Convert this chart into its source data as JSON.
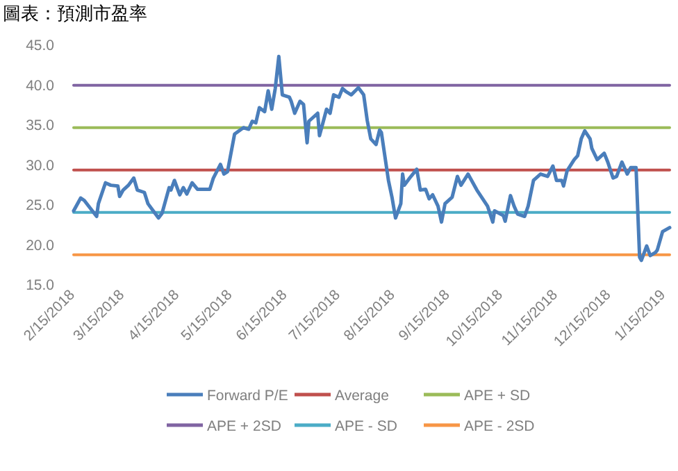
{
  "chart_data": {
    "type": "line",
    "title": "圖表：預測市盈率",
    "xlim": [
      "2018-02-14",
      "2019-01-17"
    ],
    "ylim": [
      15,
      45
    ],
    "yticks": [
      {
        "value": 15,
        "label": "15.0"
      },
      {
        "value": 20,
        "label": "20.0"
      },
      {
        "value": 25,
        "label": "25.0"
      },
      {
        "value": 30,
        "label": "30.0"
      },
      {
        "value": 35,
        "label": "35.0"
      },
      {
        "value": 40,
        "label": "40.0"
      },
      {
        "value": 45,
        "label": "45.0"
      }
    ],
    "xticks": [
      {
        "value": "2018-02-15",
        "label": "2/15/2018"
      },
      {
        "value": "2018-03-15",
        "label": "3/15/2018"
      },
      {
        "value": "2018-04-15",
        "label": "4/15/2018"
      },
      {
        "value": "2018-05-15",
        "label": "5/15/2018"
      },
      {
        "value": "2018-06-15",
        "label": "6/15/2018"
      },
      {
        "value": "2018-07-15",
        "label": "7/15/2018"
      },
      {
        "value": "2018-08-15",
        "label": "8/15/2018"
      },
      {
        "value": "2018-09-15",
        "label": "9/15/2018"
      },
      {
        "value": "2018-10-15",
        "label": "10/15/2018"
      },
      {
        "value": "2018-11-15",
        "label": "11/15/2018"
      },
      {
        "value": "2018-12-15",
        "label": "12/15/2018"
      },
      {
        "value": "2019-01-15",
        "label": "1/15/2019"
      }
    ],
    "legend": "bottom",
    "series": [
      {
        "name": "Forward P/E",
        "color": "#4a7ebb",
        "x": [
          "2018-02-14",
          "2018-02-18",
          "2018-02-20",
          "2018-02-27",
          "2018-02-28",
          "2018-03-04",
          "2018-03-07",
          "2018-03-11",
          "2018-03-12",
          "2018-03-14",
          "2018-03-17",
          "2018-03-20",
          "2018-03-22",
          "2018-03-26",
          "2018-03-28",
          "2018-03-31",
          "2018-04-03",
          "2018-04-05",
          "2018-04-09",
          "2018-04-10",
          "2018-04-12",
          "2018-04-15",
          "2018-04-17",
          "2018-04-19",
          "2018-04-22",
          "2018-04-25",
          "2018-05-02",
          "2018-05-04",
          "2018-05-08",
          "2018-05-10",
          "2018-05-12",
          "2018-05-16",
          "2018-05-21",
          "2018-05-24",
          "2018-05-26",
          "2018-05-28",
          "2018-05-30",
          "2018-06-02",
          "2018-06-04",
          "2018-06-06",
          "2018-06-08",
          "2018-06-10",
          "2018-06-12",
          "2018-06-16",
          "2018-06-17",
          "2018-06-19",
          "2018-06-22",
          "2018-06-24",
          "2018-06-26",
          "2018-06-27",
          "2018-07-02",
          "2018-07-03",
          "2018-07-07",
          "2018-07-09",
          "2018-07-11",
          "2018-07-14",
          "2018-07-16",
          "2018-07-18",
          "2018-07-21",
          "2018-07-25",
          "2018-07-28",
          "2018-07-30",
          "2018-08-01",
          "2018-08-04",
          "2018-08-06",
          "2018-08-07",
          "2018-08-11",
          "2018-08-13",
          "2018-08-15",
          "2018-08-18",
          "2018-08-19",
          "2018-08-20",
          "2018-08-23",
          "2018-08-27",
          "2018-08-29",
          "2018-09-01",
          "2018-09-03",
          "2018-09-05",
          "2018-09-08",
          "2018-09-10",
          "2018-09-12",
          "2018-09-16",
          "2018-09-19",
          "2018-09-21",
          "2018-09-25",
          "2018-09-30",
          "2018-10-06",
          "2018-10-09",
          "2018-10-10",
          "2018-10-15",
          "2018-10-16",
          "2018-10-19",
          "2018-10-21",
          "2018-10-23",
          "2018-10-27",
          "2018-10-29",
          "2018-11-01",
          "2018-11-05",
          "2018-11-09",
          "2018-11-12",
          "2018-11-14",
          "2018-11-17",
          "2018-11-18",
          "2018-11-20",
          "2018-11-24",
          "2018-11-26",
          "2018-11-28",
          "2018-11-30",
          "2018-12-03",
          "2018-12-04",
          "2018-12-07",
          "2018-12-11",
          "2018-12-13",
          "2018-12-16",
          "2018-12-18",
          "2018-12-21",
          "2018-12-24",
          "2018-12-26",
          "2018-12-29",
          "2018-12-31",
          "2019-01-01",
          "2019-01-04",
          "2019-01-06",
          "2019-01-09",
          "2019-01-10",
          "2019-01-13",
          "2019-01-17"
        ],
        "values": [
          24.2,
          25.8,
          25.5,
          23.5,
          25.1,
          27.7,
          27.4,
          27.3,
          26.0,
          26.8,
          27.4,
          28.3,
          26.8,
          26.5,
          25.1,
          24.2,
          23.3,
          23.9,
          27.1,
          26.8,
          28.0,
          26.2,
          27.1,
          26.3,
          27.7,
          26.9,
          26.9,
          28.3,
          30.0,
          28.8,
          29.1,
          33.8,
          34.6,
          34.4,
          35.4,
          35.2,
          37.1,
          36.6,
          39.2,
          36.9,
          39.5,
          43.5,
          38.7,
          38.4,
          37.9,
          36.4,
          37.9,
          37.5,
          32.7,
          35.4,
          36.4,
          33.6,
          36.9,
          36.4,
          38.7,
          38.4,
          39.5,
          39.1,
          38.7,
          39.6,
          38.7,
          35.5,
          33.2,
          32.5,
          34.3,
          34.0,
          28.0,
          25.9,
          23.3,
          25.1,
          28.8,
          27.4,
          28.3,
          29.4,
          26.8,
          26.9,
          25.7,
          26.2,
          24.8,
          22.8,
          25.1,
          25.9,
          28.5,
          27.4,
          28.8,
          26.8,
          24.8,
          22.8,
          24.2,
          23.6,
          22.9,
          26.1,
          24.8,
          23.8,
          23.5,
          24.8,
          28.0,
          28.8,
          28.5,
          29.8,
          28.0,
          28.0,
          27.3,
          29.2,
          30.6,
          31.1,
          33.2,
          34.2,
          33.2,
          32.0,
          30.6,
          31.4,
          30.3,
          28.3,
          28.5,
          30.3,
          28.8,
          29.6,
          29.6,
          18.4,
          18.0,
          19.8,
          18.6,
          19.0,
          19.3,
          21.6,
          22.1
        ]
      },
      {
        "name": "Average",
        "color": "#c0504d",
        "x": [
          "2018-02-14",
          "2019-01-17"
        ],
        "values": [
          29.3,
          29.3
        ]
      },
      {
        "name": "APE + SD",
        "color": "#9bbb59",
        "x": [
          "2018-02-14",
          "2019-01-17"
        ],
        "values": [
          34.6,
          34.6
        ]
      },
      {
        "name": "APE + 2SD",
        "color": "#8064a2",
        "x": [
          "2018-02-14",
          "2019-01-17"
        ],
        "values": [
          39.9,
          39.9
        ]
      },
      {
        "name": "APE - SD",
        "color": "#4bacc6",
        "x": [
          "2018-02-14",
          "2019-01-17"
        ],
        "values": [
          24.0,
          24.0
        ]
      },
      {
        "name": "APE - 2SD",
        "color": "#f79646",
        "x": [
          "2018-02-14",
          "2019-01-17"
        ],
        "values": [
          18.7,
          18.7
        ]
      }
    ]
  }
}
